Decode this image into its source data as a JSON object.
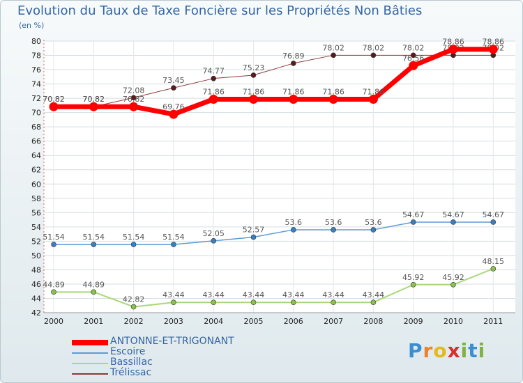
{
  "title": "Evolution du Taux de Taxe Foncière sur les Propriétés Non Bâties",
  "unit_label": "(en %)",
  "logo": {
    "text": "Proxiti",
    "letters": [
      "P",
      "r",
      "o",
      "x",
      "i",
      "t",
      "i"
    ],
    "colors": [
      "#3b8fd0",
      "#f0802a",
      "#e6b91e",
      "#d3312b",
      "#7cb342",
      "#3b8fd0",
      "#7cb342"
    ]
  },
  "chart_data": {
    "type": "line",
    "x": [
      "2000",
      "2001",
      "2002",
      "2003",
      "2004",
      "2005",
      "2006",
      "2007",
      "2008",
      "2009",
      "2010",
      "2011"
    ],
    "yticks": [
      42,
      44,
      46,
      48,
      50,
      52,
      54,
      56,
      58,
      60,
      62,
      64,
      66,
      68,
      70,
      72,
      74,
      76,
      78,
      80
    ],
    "ylim": [
      42,
      80
    ],
    "series": [
      {
        "name": "Trélissac",
        "color": "#8b3a3a",
        "line_width": 1,
        "marker": "#5a1a1a",
        "values": [
          70.82,
          70.82,
          72.08,
          73.45,
          74.77,
          75.23,
          76.89,
          78.02,
          78.02,
          78.02,
          78.02,
          78.02
        ],
        "labels": [
          "70.82",
          "70.82",
          "72.08",
          "73.45",
          "74.77",
          "75.23",
          "76.89",
          "78.02",
          "78.02",
          "78.02",
          "78.02",
          "78.02"
        ]
      },
      {
        "name": "Escoire",
        "color": "#5b9bd5",
        "line_width": 1.5,
        "marker": "#3a7fc0",
        "values": [
          51.54,
          51.54,
          51.54,
          51.54,
          52.05,
          52.57,
          53.6,
          53.6,
          53.6,
          54.67,
          54.67,
          54.67
        ],
        "labels": [
          "51.54",
          "51.54",
          "51.54",
          "51.54",
          "52.05",
          "52.57",
          "53.6",
          "53.6",
          "53.6",
          "54.67",
          "54.67",
          "54.67"
        ]
      },
      {
        "name": "Bassillac",
        "color": "#a8d878",
        "line_width": 2,
        "marker": "#8bc34a",
        "values": [
          44.89,
          44.89,
          42.82,
          43.44,
          43.44,
          43.44,
          43.44,
          43.44,
          43.44,
          45.92,
          45.92,
          48.15
        ],
        "labels": [
          "44.89",
          "44.89",
          "42.82",
          "43.44",
          "43.44",
          "43.44",
          "43.44",
          "43.44",
          "43.44",
          "45.92",
          "45.92",
          "48.15"
        ]
      },
      {
        "name": "ANTONNE-ET-TRIGONANT",
        "color": "#ff0000",
        "line_width": 7,
        "marker": "#ff0000",
        "values": [
          70.82,
          70.82,
          70.82,
          69.76,
          71.86,
          71.86,
          71.86,
          71.86,
          71.86,
          76.56,
          78.86,
          78.86
        ],
        "labels": [
          "70.82",
          "70.82",
          "70.82",
          "69.76",
          "71.86",
          "71.86",
          "71.86",
          "71.86",
          "71.86",
          "76.56",
          "78.86",
          "78.86"
        ]
      }
    ],
    "legend": [
      {
        "name": "ANTONNE-ET-TRIGONANT",
        "color": "#ff0000"
      },
      {
        "name": "Escoire",
        "color": "#5b9bd5"
      },
      {
        "name": "Bassillac",
        "color": "#a8d878"
      },
      {
        "name": "Trélissac",
        "color": "#8b3a3a"
      }
    ]
  }
}
